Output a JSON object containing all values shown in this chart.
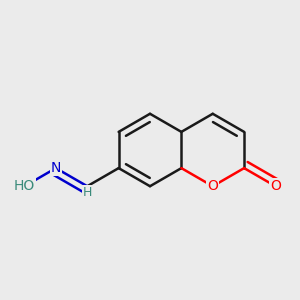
{
  "background_color": "#ebebeb",
  "bond_color": "#1a1a1a",
  "bond_width": 1.8,
  "atom_colors": {
    "O_carbonyl": "#ff0000",
    "O_ring": "#ff0000",
    "N": "#0000cd",
    "O_hydroxyl": "#3a8a7a",
    "H_color": "#3a8a7a",
    "C": "#1a1a1a"
  },
  "font_size": 10,
  "fig_size": [
    3.0,
    3.0
  ],
  "dpi": 100,
  "xlim": [
    -2.5,
    2.5
  ],
  "ylim": [
    -2.2,
    2.2
  ]
}
